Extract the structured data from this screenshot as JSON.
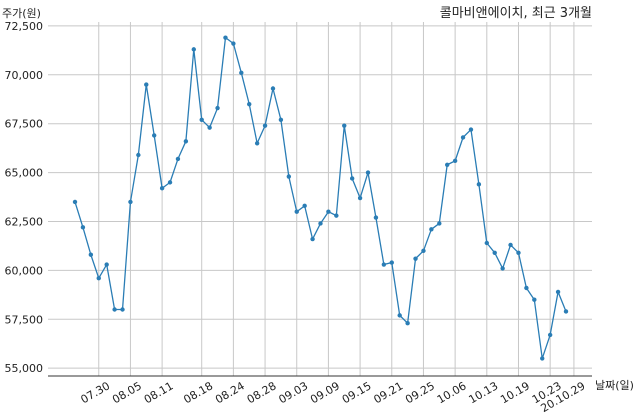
{
  "chart_data": {
    "type": "line",
    "title": "콜마비앤에이치, 최근 3개월",
    "xlabel": "날짜(일)",
    "ylabel": "주가(원)",
    "grid": true,
    "ylim": [
      54600,
      72700
    ],
    "y_ticks": [
      55000,
      57500,
      60000,
      62500,
      65000,
      67500,
      70000,
      72500
    ],
    "y_tick_labels": [
      "55,000",
      "57,500",
      "60,000",
      "62,500",
      "65,000",
      "67,500",
      "70,000",
      "72,500"
    ],
    "x_ticks": [
      {
        "label": "07.30",
        "index": 3
      },
      {
        "label": "08.05",
        "index": 7
      },
      {
        "label": "08.11",
        "index": 11
      },
      {
        "label": "08.18",
        "index": 16
      },
      {
        "label": "08.24",
        "index": 20
      },
      {
        "label": "08.28",
        "index": 24
      },
      {
        "label": "09.03",
        "index": 28
      },
      {
        "label": "09.09",
        "index": 32
      },
      {
        "label": "09.15",
        "index": 36
      },
      {
        "label": "09.21",
        "index": 40
      },
      {
        "label": "09.25",
        "index": 44
      },
      {
        "label": "10.06",
        "index": 48
      },
      {
        "label": "10.13",
        "index": 52
      },
      {
        "label": "10.19",
        "index": 56
      },
      {
        "label": "10.23",
        "index": 60
      },
      {
        "label": "20.10.29",
        "index": 63
      }
    ],
    "series": [
      {
        "color": "#2a7db5",
        "values": [
          63500,
          62200,
          60800,
          59600,
          60300,
          58000,
          58000,
          63500,
          65900,
          69500,
          66900,
          64200,
          64500,
          65700,
          66600,
          71300,
          67700,
          67300,
          68300,
          71900,
          71600,
          70100,
          68500,
          66500,
          67400,
          69300,
          67700,
          64800,
          63000,
          63300,
          61600,
          62400,
          63000,
          62800,
          67400,
          64700,
          63700,
          65000,
          62700,
          60300,
          60400,
          57700,
          57300,
          60600,
          61000,
          62100,
          62400,
          65400,
          65600,
          66800,
          67200,
          64400,
          61400,
          60900,
          60100,
          61300,
          60900,
          59100,
          58500,
          55500,
          56700,
          58900,
          57900
        ]
      }
    ]
  }
}
